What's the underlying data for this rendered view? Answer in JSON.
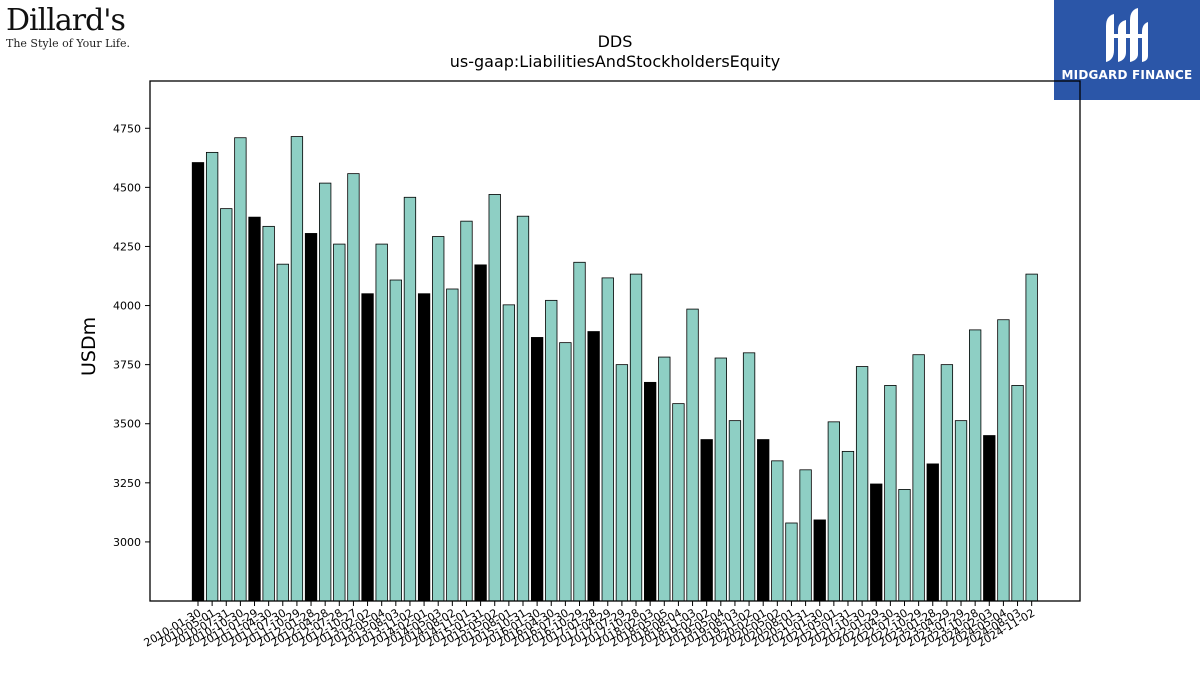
{
  "header": {
    "title_line1": "DDS",
    "title_line2": "us-gaap:LiabilitiesAndStockholdersEquity"
  },
  "logos": {
    "left": {
      "brand": "Dillard's",
      "tagline": "The Style of Your Life."
    },
    "right": {
      "name": "MIDGARD FINANCE",
      "background": "#2b56a8"
    }
  },
  "chart_data": {
    "type": "bar",
    "title": "DDS\nus-gaap:LiabilitiesAndStockholdersEquity",
    "ylabel": "USDm",
    "xlabel": "",
    "ylim": [
      2750,
      4950
    ],
    "yticks": [
      3000,
      3250,
      3500,
      3750,
      4000,
      4250,
      4500,
      4750
    ],
    "colors": {
      "annual": "#000000",
      "quarterly": "#8ecfc4",
      "edge": "#000000"
    },
    "grid": false,
    "categories": [
      "2010-01-30",
      "2010-05-01",
      "2010-07-31",
      "2010-10-30",
      "2011-01-29",
      "2011-04-30",
      "2011-07-30",
      "2011-10-29",
      "2012-01-28",
      "2012-04-28",
      "2012-07-28",
      "2012-10-27",
      "2013-02-02",
      "2013-05-04",
      "2013-08-03",
      "2013-11-02",
      "2014-02-01",
      "2014-05-03",
      "2014-08-02",
      "2014-11-01",
      "2015-01-31",
      "2015-05-02",
      "2015-08-01",
      "2015-10-31",
      "2016-01-30",
      "2016-04-30",
      "2016-07-30",
      "2016-10-29",
      "2017-01-28",
      "2017-04-29",
      "2017-07-29",
      "2017-10-28",
      "2018-02-03",
      "2018-05-05",
      "2018-08-04",
      "2018-11-03",
      "2019-02-02",
      "2019-05-04",
      "2019-08-03",
      "2019-11-02",
      "2020-02-01",
      "2020-05-02",
      "2020-08-01",
      "2020-10-31",
      "2021-01-30",
      "2021-05-01",
      "2021-07-31",
      "2021-10-30",
      "2022-01-29",
      "2022-04-30",
      "2022-07-30",
      "2022-10-29",
      "2023-01-28",
      "2023-04-29",
      "2023-07-29",
      "2023-10-28",
      "2024-02-03",
      "2024-05-04",
      "2024-08-03",
      "2024-11-02"
    ],
    "values": [
      4605,
      4648,
      4410,
      4710,
      4374,
      4335,
      4175,
      4715,
      4305,
      4518,
      4260,
      4558,
      4050,
      4260,
      4108,
      4458,
      4050,
      4292,
      4070,
      4357,
      4172,
      4470,
      4003,
      4378,
      3865,
      4022,
      3843,
      4183,
      3890,
      4117,
      3750,
      4133,
      3675,
      3782,
      3585,
      3985,
      3433,
      3778,
      3513,
      3800,
      3433,
      3343,
      3080,
      3305,
      3093,
      3508,
      3383,
      3742,
      3245,
      3662,
      3222,
      3792,
      3330,
      3750,
      3513,
      3897,
      3450,
      3940,
      3662,
      4133
    ],
    "annual_flags": [
      1,
      0,
      0,
      0,
      1,
      0,
      0,
      0,
      1,
      0,
      0,
      0,
      1,
      0,
      0,
      0,
      1,
      0,
      0,
      0,
      1,
      0,
      0,
      0,
      1,
      0,
      0,
      0,
      1,
      0,
      0,
      0,
      1,
      0,
      0,
      0,
      1,
      0,
      0,
      0,
      1,
      0,
      0,
      0,
      1,
      0,
      0,
      0,
      1,
      0,
      0,
      0,
      1,
      0,
      0,
      0,
      1,
      0,
      0,
      0
    ]
  }
}
